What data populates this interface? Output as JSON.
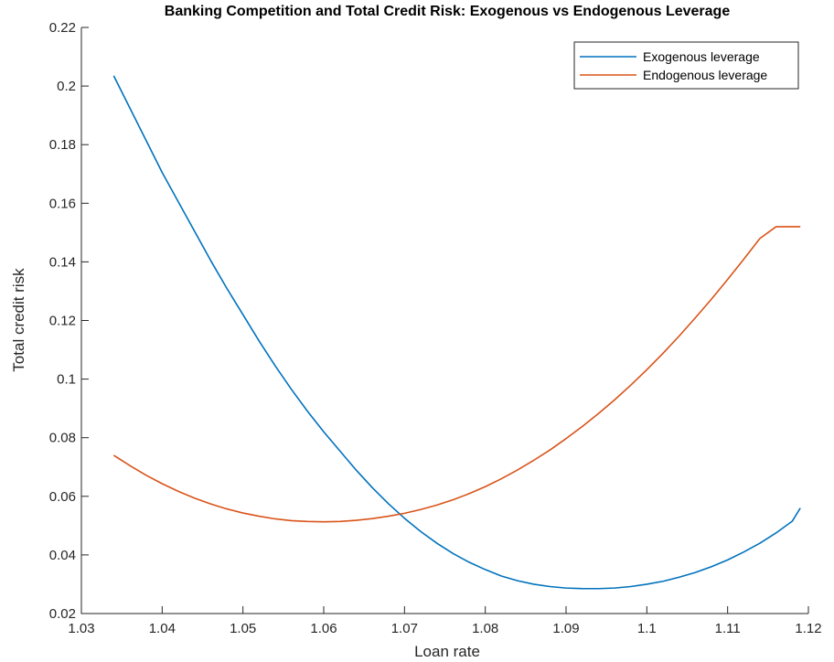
{
  "chart_data": {
    "type": "line",
    "title": "Banking Competition and Total Credit Risk: Exogenous vs Endogenous Leverage",
    "xlabel": "Loan rate",
    "ylabel": "Total credit risk",
    "xlim": [
      1.03,
      1.12
    ],
    "ylim": [
      0.02,
      0.22
    ],
    "xticks": [
      "1.03",
      "1.04",
      "1.05",
      "1.06",
      "1.07",
      "1.08",
      "1.09",
      "1.1",
      "1.11",
      "1.12"
    ],
    "yticks": [
      "0.02",
      "0.04",
      "0.06",
      "0.08",
      "0.1",
      "0.12",
      "0.14",
      "0.16",
      "0.18",
      "0.2",
      "0.22"
    ],
    "grid": false,
    "legend_position": "top-right",
    "series": [
      {
        "name": "Exogenous leverage",
        "color": "#0072BD",
        "x": [
          1.034,
          1.036,
          1.038,
          1.04,
          1.042,
          1.044,
          1.046,
          1.048,
          1.05,
          1.052,
          1.054,
          1.056,
          1.058,
          1.06,
          1.062,
          1.064,
          1.066,
          1.068,
          1.07,
          1.072,
          1.074,
          1.076,
          1.078,
          1.08,
          1.082,
          1.084,
          1.086,
          1.088,
          1.09,
          1.092,
          1.094,
          1.096,
          1.098,
          1.1,
          1.102,
          1.104,
          1.106,
          1.108,
          1.11,
          1.112,
          1.114,
          1.116,
          1.118,
          1.119
        ],
        "y": [
          0.2035,
          0.1925,
          0.1815,
          0.1705,
          0.1605,
          0.1505,
          0.1405,
          0.131,
          0.122,
          0.113,
          0.1045,
          0.0965,
          0.089,
          0.082,
          0.0755,
          0.069,
          0.063,
          0.0575,
          0.0525,
          0.048,
          0.044,
          0.0405,
          0.0375,
          0.035,
          0.0328,
          0.0312,
          0.03,
          0.0292,
          0.0287,
          0.0285,
          0.0285,
          0.0287,
          0.0292,
          0.03,
          0.031,
          0.0324,
          0.034,
          0.036,
          0.0383,
          0.041,
          0.044,
          0.0475,
          0.0515,
          0.056
        ]
      },
      {
        "name": "Endogenous leverage",
        "color": "#D95319",
        "x": [
          1.034,
          1.036,
          1.038,
          1.04,
          1.042,
          1.044,
          1.046,
          1.048,
          1.05,
          1.052,
          1.054,
          1.056,
          1.058,
          1.06,
          1.062,
          1.064,
          1.066,
          1.068,
          1.07,
          1.072,
          1.074,
          1.076,
          1.078,
          1.08,
          1.082,
          1.084,
          1.086,
          1.088,
          1.09,
          1.092,
          1.094,
          1.096,
          1.098,
          1.1,
          1.102,
          1.104,
          1.106,
          1.108,
          1.11,
          1.112,
          1.114,
          1.116,
          1.118,
          1.119
        ],
        "y": [
          0.074,
          0.0705,
          0.0672,
          0.0643,
          0.0617,
          0.0594,
          0.0574,
          0.0557,
          0.0543,
          0.0532,
          0.0523,
          0.0517,
          0.0514,
          0.0513,
          0.0514,
          0.0518,
          0.0524,
          0.0532,
          0.0542,
          0.0555,
          0.057,
          0.0588,
          0.0609,
          0.0633,
          0.066,
          0.069,
          0.0723,
          0.0758,
          0.0797,
          0.0838,
          0.0882,
          0.0929,
          0.0979,
          0.1032,
          0.1088,
          0.1147,
          0.1209,
          0.1273,
          0.134,
          0.1409,
          0.148,
          0.152,
          0.152,
          0.152
        ]
      }
    ]
  }
}
